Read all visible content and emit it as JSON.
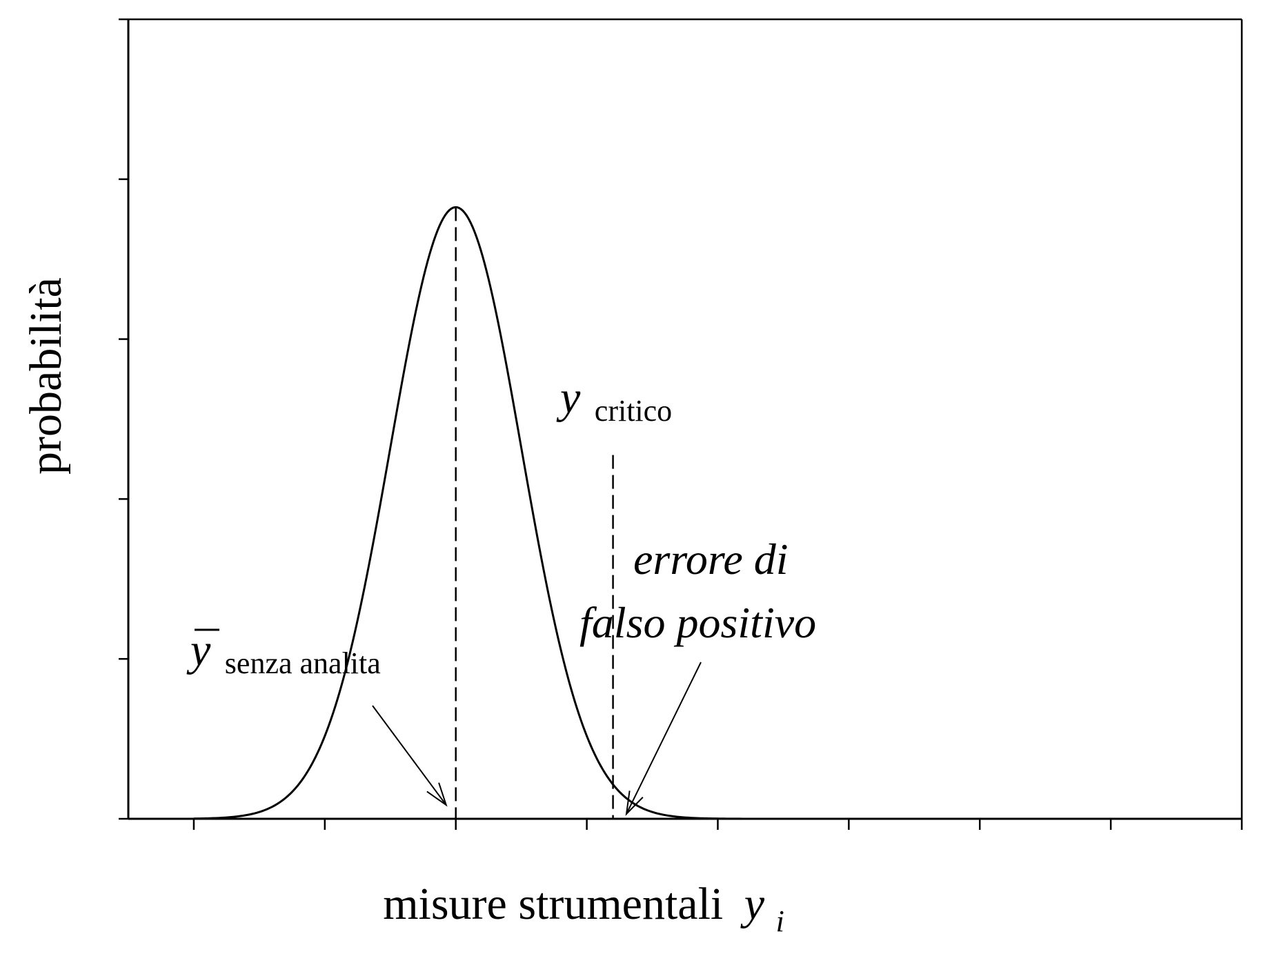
{
  "chart_data": {
    "type": "line",
    "xlabel": "misure strumentali",
    "xlabel_var": "y",
    "xlabel_sub": "i",
    "ylabel": "probabilità",
    "xlim": [
      -2.5,
      6.0
    ],
    "ylim": [
      0,
      1.0
    ],
    "x_tick_values": [
      -2.0,
      -1.0,
      0.0,
      1.0,
      2.0,
      3.0,
      4.0,
      5.0,
      6.0
    ],
    "y_tick_values": [
      0,
      0.2,
      0.4,
      0.6,
      0.8,
      1.0
    ],
    "grid": false,
    "series": [
      {
        "kind": "gaussian",
        "mean": 0.0,
        "sd": 0.5,
        "peak": 0.765
      }
    ],
    "markers": [
      {
        "id": "mean",
        "x": 0.0,
        "y_top": 0.765
      },
      {
        "id": "critical",
        "x": 1.2,
        "y_top": 0.455
      }
    ],
    "annotations": {
      "mean_label": {
        "var": "y",
        "sub": "senza analita"
      },
      "critical_label": {
        "var": "y",
        "sub": "critico"
      },
      "fp_label": {
        "line1": "errore di",
        "line2": "falso positivo"
      }
    }
  }
}
